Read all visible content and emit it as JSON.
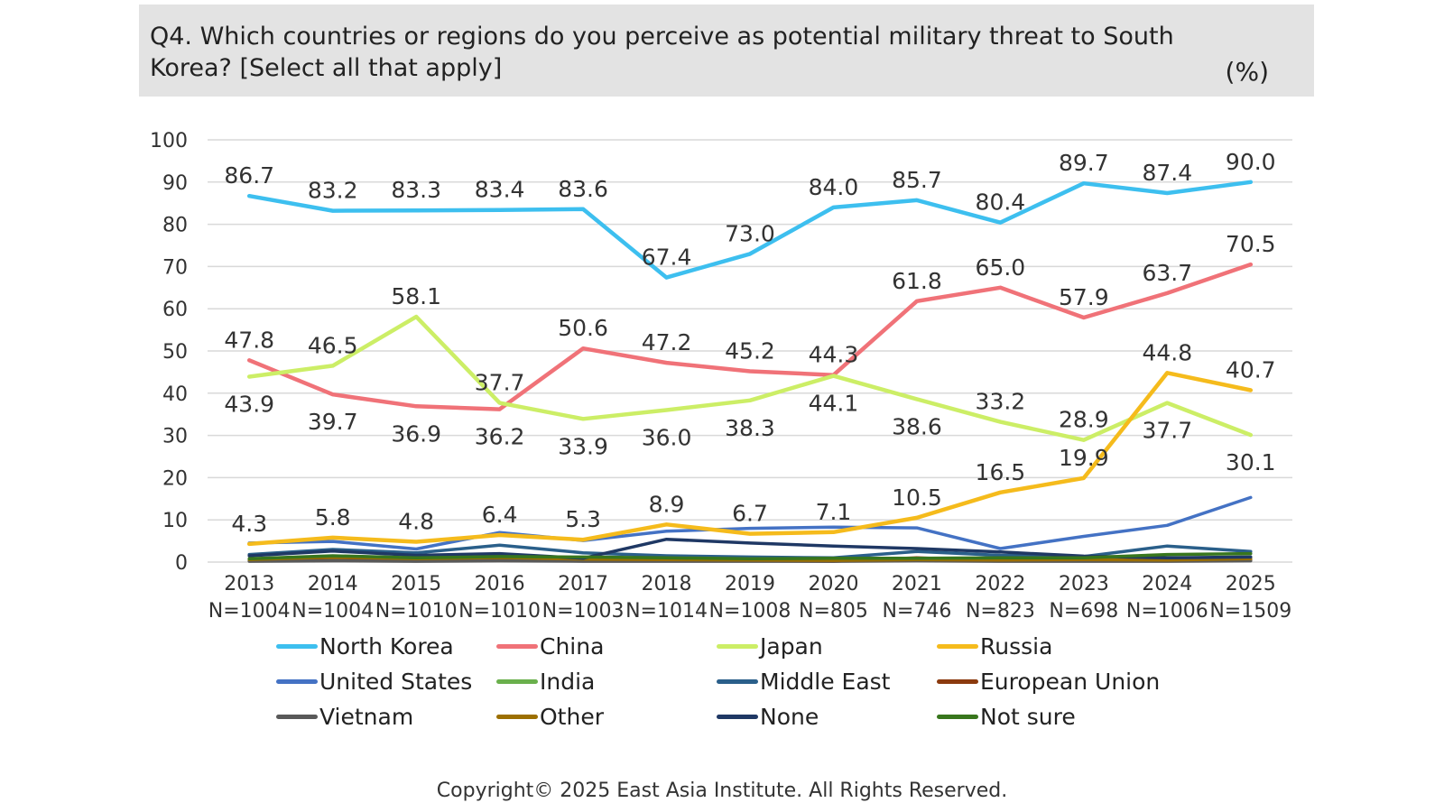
{
  "header": {
    "question": "Q4. Which countries or regions do you perceive as potential military threat to South Korea? [Select all that apply]",
    "unit": "(%)"
  },
  "chart_data": {
    "type": "line",
    "title": "Q4. Which countries or regions do you perceive as potential military threat to South Korea? [Select all that apply]",
    "unit": "(%)",
    "ylim": [
      0,
      100
    ],
    "yticks": [
      0,
      10,
      20,
      30,
      40,
      50,
      60,
      70,
      80,
      90,
      100
    ],
    "grid": true,
    "legend_position": "bottom",
    "categories": [
      "2013",
      "2014",
      "2015",
      "2016",
      "2017",
      "2018",
      "2019",
      "2020",
      "2021",
      "2022",
      "2023",
      "2024",
      "2025"
    ],
    "sample_sizes": [
      "N=1004",
      "N=1004",
      "N=1010",
      "N=1010",
      "N=1003",
      "N=1014",
      "N=1008",
      "N=805",
      "N=746",
      "N=823",
      "N=698",
      "N=1006",
      "N=1509"
    ],
    "series": [
      {
        "name": "North Korea",
        "color": "#3dbfef",
        "values": [
          86.7,
          83.2,
          83.3,
          83.4,
          83.6,
          67.4,
          73.0,
          84.0,
          85.7,
          80.4,
          89.7,
          87.4,
          90.0
        ],
        "labels": [
          "86.7",
          "83.2",
          "83.3",
          "83.4",
          "83.6",
          "67.4",
          "73.0",
          "84.0",
          "85.7",
          "80.4",
          "89.7",
          "87.4",
          "90.0"
        ],
        "label_pos": [
          "above",
          "above",
          "above",
          "above",
          "above",
          "above",
          "above",
          "above",
          "above",
          "above",
          "above",
          "above",
          "above"
        ]
      },
      {
        "name": "China",
        "color": "#f07278",
        "values": [
          47.8,
          39.7,
          36.9,
          36.2,
          50.6,
          47.2,
          45.2,
          44.3,
          61.8,
          65.0,
          57.9,
          63.7,
          70.5
        ],
        "labels": [
          "47.8",
          "39.7",
          "36.9",
          "36.2",
          "50.6",
          "47.2",
          "45.2",
          "44.3",
          "61.8",
          "65.0",
          "57.9",
          "63.7",
          "70.5"
        ],
        "label_pos": [
          "above",
          "below",
          "below",
          "below",
          "above",
          "above",
          "above",
          "above",
          "above",
          "above",
          "above",
          "above",
          "above"
        ]
      },
      {
        "name": "Japan",
        "color": "#ccee66",
        "values": [
          43.9,
          46.5,
          58.1,
          37.7,
          33.9,
          36.0,
          38.3,
          44.1,
          38.6,
          33.2,
          28.9,
          37.7,
          30.1
        ],
        "labels": [
          "43.9",
          "46.5",
          "58.1",
          "37.7",
          "33.9",
          "36.0",
          "38.3",
          "44.1",
          "38.6",
          "33.2",
          "28.9",
          "37.7",
          "30.1"
        ],
        "label_pos": [
          "below",
          "above",
          "above",
          "above",
          "below",
          "below",
          "below",
          "below",
          "below",
          "above",
          "above",
          "below",
          "below"
        ]
      },
      {
        "name": "Russia",
        "color": "#f5bb1c",
        "values": [
          4.3,
          5.8,
          4.8,
          6.4,
          5.3,
          8.9,
          6.7,
          7.1,
          10.5,
          16.5,
          19.9,
          44.8,
          40.7
        ],
        "labels": [
          "4.3",
          "5.8",
          "4.8",
          "6.4",
          "5.3",
          "8.9",
          "6.7",
          "7.1",
          "10.5",
          "16.5",
          "19.9",
          "44.8",
          "40.7"
        ],
        "label_pos": [
          "above",
          "above",
          "above",
          "above",
          "above",
          "above",
          "above",
          "above",
          "above",
          "above",
          "above",
          "above",
          "above"
        ]
      },
      {
        "name": "United States",
        "color": "#4472c4",
        "values": [
          4.5,
          4.9,
          3.1,
          7.0,
          5.1,
          7.3,
          8.0,
          8.3,
          8.1,
          3.2,
          6.1,
          8.7,
          15.3
        ]
      },
      {
        "name": "India",
        "color": "#6ab04c",
        "values": [
          0.5,
          0.7,
          0.6,
          0.8,
          0.6,
          0.5,
          0.5,
          0.4,
          0.6,
          0.4,
          0.5,
          0.5,
          0.6
        ]
      },
      {
        "name": "Middle East",
        "color": "#2a5f8a",
        "values": [
          1.8,
          3.0,
          2.2,
          4.0,
          2.2,
          1.5,
          1.2,
          1.0,
          2.5,
          1.6,
          1.3,
          3.8,
          2.5
        ]
      },
      {
        "name": "European Union",
        "color": "#8b3a0e",
        "values": [
          0.3,
          0.4,
          0.3,
          0.4,
          0.3,
          0.3,
          0.3,
          0.2,
          1.0,
          0.3,
          0.3,
          0.4,
          0.4
        ]
      },
      {
        "name": "Vietnam",
        "color": "#595959",
        "values": [
          0.2,
          0.3,
          0.2,
          0.3,
          0.2,
          0.2,
          0.2,
          0.2,
          0.3,
          0.2,
          0.2,
          0.2,
          0.3
        ]
      },
      {
        "name": "Other",
        "color": "#9c6f00",
        "values": [
          0.6,
          1.2,
          0.8,
          1.1,
          0.7,
          0.6,
          0.5,
          0.4,
          0.6,
          0.5,
          0.6,
          0.5,
          0.8
        ]
      },
      {
        "name": "None",
        "color": "#1f3864",
        "values": [
          1.5,
          2.6,
          1.6,
          2.0,
          0.9,
          5.4,
          4.5,
          3.8,
          3.2,
          2.4,
          1.4,
          1.0,
          1.2
        ]
      },
      {
        "name": "Not sure",
        "color": "#38761d",
        "values": [
          0.8,
          1.5,
          1.0,
          1.3,
          1.2,
          1.0,
          0.8,
          0.9,
          0.9,
          1.0,
          1.0,
          1.8,
          2.0
        ]
      }
    ]
  },
  "footer": {
    "copyright": "Copyright© 2025 East Asia Institute. All Rights Reserved."
  }
}
